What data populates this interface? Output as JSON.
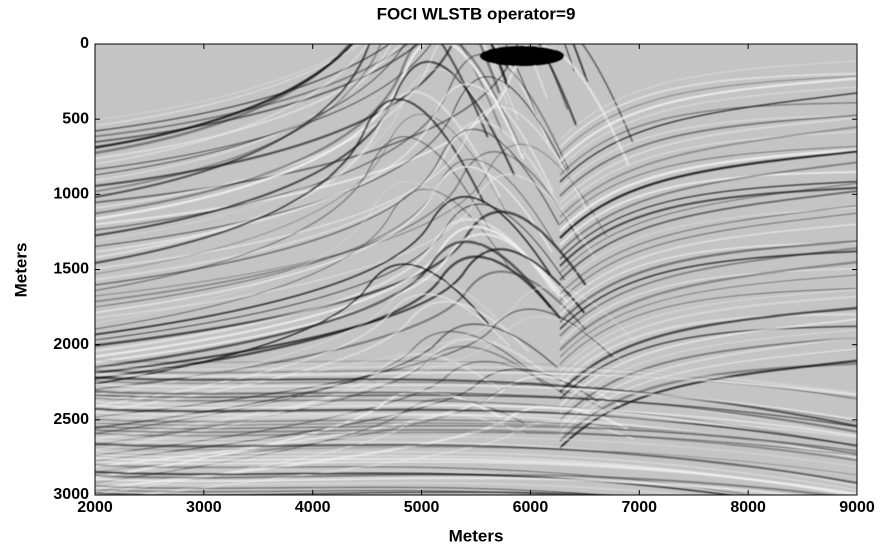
{
  "chart_data": {
    "type": "image",
    "title": "FOCI WLSTB operator=9",
    "x_label": "Meters",
    "y_label": "Meters",
    "xlim": [
      2000,
      9000
    ],
    "xticks": [
      2000,
      3000,
      4000,
      5000,
      6000,
      7000,
      8000,
      9000
    ],
    "ylim": [
      0,
      3000
    ],
    "yticks": [
      0,
      500,
      1000,
      1500,
      2000,
      2500,
      3000
    ],
    "y_inverted": true,
    "colormap": "gray"
  }
}
